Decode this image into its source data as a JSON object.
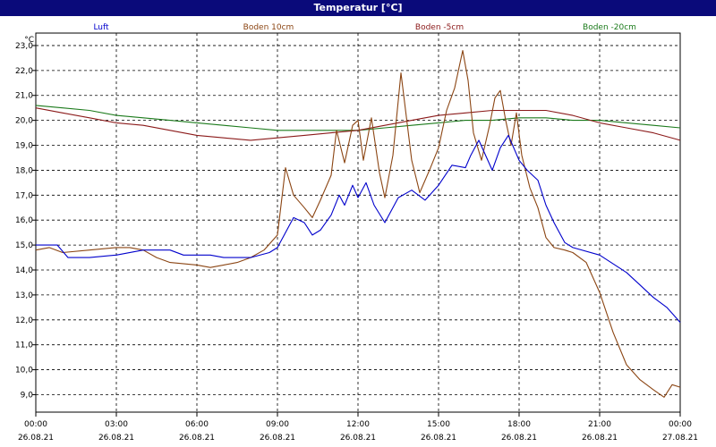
{
  "window": {
    "title": "Temperatur [°C]"
  },
  "chart_data": {
    "type": "line",
    "title": "Temperatur [°C]",
    "ylabel": "°C",
    "xlabel": "",
    "ylim": [
      8.3,
      23.5
    ],
    "xlim": [
      0,
      24
    ],
    "grid": true,
    "legend_position": "top",
    "yticks": [
      {
        "v": 9.0,
        "label": "9,0"
      },
      {
        "v": 10.0,
        "label": "10,0"
      },
      {
        "v": 11.0,
        "label": "11,0"
      },
      {
        "v": 12.0,
        "label": "12,0"
      },
      {
        "v": 13.0,
        "label": "13,0"
      },
      {
        "v": 14.0,
        "label": "14,0"
      },
      {
        "v": 15.0,
        "label": "15,0"
      },
      {
        "v": 16.0,
        "label": "16,0"
      },
      {
        "v": 17.0,
        "label": "17,0"
      },
      {
        "v": 18.0,
        "label": "18,0"
      },
      {
        "v": 19.0,
        "label": "19,0"
      },
      {
        "v": 20.0,
        "label": "20,0"
      },
      {
        "v": 21.0,
        "label": "21,0"
      },
      {
        "v": 22.0,
        "label": "22,0"
      },
      {
        "v": 23.0,
        "label": "23,0"
      }
    ],
    "xticks": [
      {
        "v": 0,
        "time": "00:00",
        "date": "26.08.21"
      },
      {
        "v": 3,
        "time": "03:00",
        "date": "26.08.21"
      },
      {
        "v": 6,
        "time": "06:00",
        "date": "26.08.21"
      },
      {
        "v": 9,
        "time": "09:00",
        "date": "26.08.21"
      },
      {
        "v": 12,
        "time": "12:00",
        "date": "26.08.21"
      },
      {
        "v": 15,
        "time": "15:00",
        "date": "26.08.21"
      },
      {
        "v": 18,
        "time": "18:00",
        "date": "26.08.21"
      },
      {
        "v": 21,
        "time": "21:00",
        "date": "26.08.21"
      },
      {
        "v": 24,
        "time": "00:00",
        "date": "27.08.21"
      }
    ],
    "series": [
      {
        "name": "Luft",
        "color": "#0000cc",
        "x": [
          0,
          0.8,
          1.2,
          2,
          3,
          4,
          4.5,
          5,
          5.5,
          6,
          6.5,
          7,
          8,
          8.7,
          9,
          9.2,
          9.6,
          10,
          10.3,
          10.6,
          11,
          11.3,
          11.5,
          11.8,
          12,
          12.3,
          12.6,
          13,
          13.5,
          14,
          14.5,
          15,
          15.5,
          16,
          16.2,
          16.5,
          17,
          17.3,
          17.6,
          18,
          18.3,
          18.7,
          19,
          19.3,
          19.7,
          20,
          21,
          22,
          22.5,
          23,
          23.5,
          24
        ],
        "values": [
          15.0,
          15.0,
          14.5,
          14.5,
          14.6,
          14.8,
          14.8,
          14.8,
          14.6,
          14.6,
          14.6,
          14.5,
          14.5,
          14.7,
          14.9,
          15.3,
          16.1,
          15.9,
          15.4,
          15.6,
          16.2,
          17.0,
          16.6,
          17.4,
          16.9,
          17.5,
          16.6,
          15.9,
          16.9,
          17.2,
          16.8,
          17.4,
          18.2,
          18.1,
          18.6,
          19.2,
          18.0,
          18.9,
          19.4,
          18.4,
          18.0,
          17.6,
          16.6,
          15.9,
          15.1,
          14.9,
          14.6,
          13.9,
          13.4,
          12.9,
          12.5,
          11.9
        ]
      },
      {
        "name": "Boden 10cm",
        "color": "#8b4513",
        "x": [
          0,
          0.5,
          1,
          2,
          3,
          3.5,
          4,
          4.5,
          5,
          6,
          6.5,
          7,
          7.5,
          8,
          8.5,
          9,
          9.3,
          9.6,
          10,
          10.3,
          10.6,
          11,
          11.2,
          11.5,
          11.8,
          12,
          12.2,
          12.5,
          12.8,
          13,
          13.3,
          13.6,
          14,
          14.3,
          14.7,
          15,
          15.3,
          15.6,
          15.9,
          16.1,
          16.3,
          16.6,
          16.9,
          17.1,
          17.3,
          17.5,
          17.7,
          17.9,
          18.1,
          18.4,
          18.7,
          19,
          19.3,
          19.7,
          20,
          20.5,
          21,
          21.5,
          22,
          22.5,
          23,
          23.4,
          23.7,
          24
        ],
        "values": [
          14.8,
          14.9,
          14.7,
          14.8,
          14.9,
          14.9,
          14.8,
          14.5,
          14.3,
          14.2,
          14.1,
          14.2,
          14.3,
          14.5,
          14.8,
          15.4,
          18.1,
          17.0,
          16.5,
          16.1,
          16.8,
          17.8,
          19.6,
          18.3,
          19.8,
          20.0,
          18.4,
          20.1,
          17.9,
          16.9,
          18.6,
          21.9,
          18.4,
          17.1,
          18.1,
          18.9,
          20.4,
          21.3,
          22.8,
          21.6,
          19.5,
          18.4,
          19.8,
          20.9,
          21.2,
          20.0,
          19.0,
          20.3,
          18.6,
          17.3,
          16.5,
          15.3,
          14.9,
          14.8,
          14.7,
          14.3,
          13.1,
          11.5,
          10.2,
          9.6,
          9.2,
          8.9,
          9.4,
          9.3
        ]
      },
      {
        "name": "Boden -5cm",
        "color": "#8b1a1a",
        "x": [
          0,
          1,
          2,
          3,
          4,
          5,
          6,
          7,
          8,
          9,
          10,
          11,
          12,
          13,
          14,
          15,
          16,
          17,
          18,
          19,
          20,
          21,
          22,
          23,
          24
        ],
        "values": [
          20.5,
          20.3,
          20.1,
          19.9,
          19.8,
          19.6,
          19.4,
          19.3,
          19.2,
          19.3,
          19.4,
          19.5,
          19.6,
          19.8,
          20.0,
          20.2,
          20.3,
          20.4,
          20.4,
          20.4,
          20.2,
          19.9,
          19.7,
          19.5,
          19.2
        ]
      },
      {
        "name": "Boden -20cm",
        "color": "#1b7a1b",
        "x": [
          0,
          1,
          2,
          3,
          4,
          5,
          6,
          7,
          8,
          9,
          10,
          11,
          12,
          13,
          14,
          15,
          16,
          17,
          18,
          19,
          20,
          21,
          22,
          23,
          24
        ],
        "values": [
          20.6,
          20.5,
          20.4,
          20.2,
          20.1,
          20.0,
          19.9,
          19.8,
          19.7,
          19.6,
          19.6,
          19.6,
          19.6,
          19.7,
          19.8,
          19.9,
          20.0,
          20.0,
          20.1,
          20.1,
          20.0,
          20.0,
          19.9,
          19.8,
          19.7
        ]
      }
    ]
  }
}
